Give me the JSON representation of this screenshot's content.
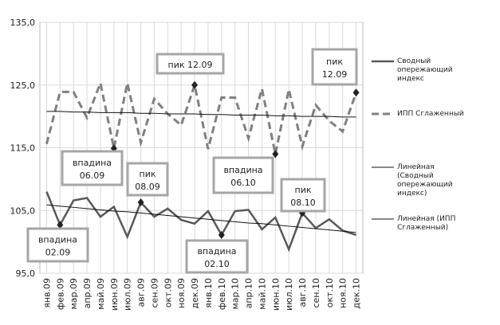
{
  "chart_data": {
    "type": "line",
    "categories": [
      "янв.09",
      "фев.09",
      "мар.09",
      "апр.09",
      "май.09",
      "июн.09",
      "июл.09",
      "авг.09",
      "сен.09",
      "окт.09",
      "ноя.09",
      "дек.09",
      "янв.10",
      "фев.10",
      "мар.10",
      "апр.10",
      "май.10",
      "июн.10",
      "июл.10",
      "авг.10",
      "сен.10",
      "окт.10",
      "ноя.10",
      "дек.10"
    ],
    "series": [
      {
        "name": "Сводный опережающий индекс",
        "color": "#595959",
        "style": "solid",
        "values": [
          108.0,
          102.7,
          106.6,
          107.0,
          104.0,
          105.6,
          100.8,
          106.3,
          104.0,
          105.3,
          103.5,
          102.9,
          104.9,
          101.1,
          104.9,
          105.1,
          102.0,
          103.9,
          98.8,
          104.6,
          102.2,
          103.6,
          101.8,
          101.1
        ]
      },
      {
        "name": "ИПП Сглаженный",
        "color": "#808080",
        "style": "dashed",
        "values": [
          115.6,
          123.9,
          123.9,
          119.8,
          125.3,
          114.9,
          125.3,
          115.8,
          122.8,
          120.4,
          118.6,
          125.0,
          114.8,
          123.0,
          123.0,
          116.5,
          124.4,
          114.0,
          124.3,
          115.2,
          121.8,
          119.3,
          117.6,
          123.8
        ]
      },
      {
        "name": "Линейная (Сводный опережающий индекс)",
        "color": "#111111",
        "style": "trend",
        "values": [
          105.9,
          105.7,
          105.5,
          105.3,
          105.1,
          104.9,
          104.8,
          104.6,
          104.4,
          104.2,
          104.0,
          103.8,
          103.6,
          103.4,
          103.2,
          103.0,
          102.9,
          102.7,
          102.5,
          102.3,
          102.1,
          101.9,
          101.7,
          101.5
        ]
      },
      {
        "name": "Линейная (ИПП Сглаженный)",
        "color": "#111111",
        "style": "trend",
        "values": [
          120.8,
          120.8,
          120.7,
          120.7,
          120.6,
          120.6,
          120.6,
          120.5,
          120.5,
          120.4,
          120.4,
          120.4,
          120.3,
          120.3,
          120.2,
          120.2,
          120.2,
          120.1,
          120.1,
          120.0,
          120.0,
          120.0,
          119.9,
          119.9
        ]
      }
    ],
    "ylim": [
      95,
      135
    ],
    "yticks": [
      {
        "value": 95,
        "label": "95,0"
      },
      {
        "value": 105,
        "label": "105,0"
      },
      {
        "value": 115,
        "label": "115,0"
      },
      {
        "value": 125,
        "label": "125,0"
      },
      {
        "value": 135,
        "label": "135,0"
      }
    ],
    "grid": true,
    "legend": "right",
    "annotations": [
      {
        "lines": [
          "впадина",
          "02.09"
        ]
      },
      {
        "lines": [
          "впадина",
          "06.09"
        ]
      },
      {
        "lines": [
          "пик",
          "08.09"
        ]
      },
      {
        "lines": [
          "пик 12.09"
        ]
      },
      {
        "lines": [
          "впадина",
          "06.10"
        ]
      },
      {
        "lines": [
          "впадина",
          "02.10"
        ]
      },
      {
        "lines": [
          "пик",
          "08.10"
        ]
      },
      {
        "lines": [
          "пик",
          "12.09"
        ]
      }
    ]
  }
}
